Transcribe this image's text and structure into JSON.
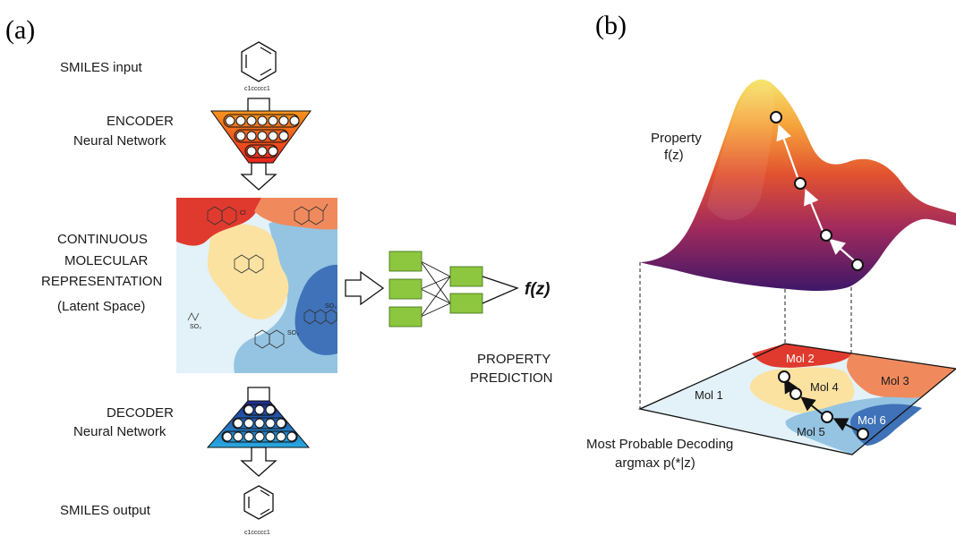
{
  "panel_a": {
    "label": "(a)",
    "smiles_input_label": "SMILES input",
    "smiles_input_text": "c1ccccc1",
    "encoder_line1": "ENCODER",
    "encoder_line2": "Neural Network",
    "continuous_line1": "CONTINUOUS",
    "continuous_line2": "MOLECULAR",
    "continuous_line3": "REPRESENTATION",
    "latent_space": "(Latent Space)",
    "decoder_line1": "DECODER",
    "decoder_line2": "Neural Network",
    "smiles_output_label": "SMILES output",
    "smiles_output_text": "c1ccccc1",
    "fz": "f(z)",
    "property_line1": "PROPERTY",
    "property_line2": "PREDICTION",
    "so3_a": "SO₃",
    "so3_b": "SO₃",
    "so3_c": "SO₃",
    "cl": "Cl"
  },
  "panel_b": {
    "label": "(b)",
    "property_line1": "Property",
    "property_line2": "f(z)",
    "mol1": "Mol 1",
    "mol2": "Mol 2",
    "mol3": "Mol 3",
    "mol4": "Mol 4",
    "mol5": "Mol 5",
    "mol6": "Mol 6",
    "decoding_line1": "Most Probable Decoding",
    "decoding_line2": "argmax p(*|z)"
  },
  "colors": {
    "encoder_top": "#f7941d",
    "encoder_bottom": "#e8241e",
    "decoder_top": "#1e2a8c",
    "decoder_bottom": "#29abe2",
    "nn_green": "#8dc63f",
    "region_red": "#e03a2e",
    "region_orange": "#f08a5d",
    "region_yellow": "#fbe2a1",
    "region_lightblue": "#e3f1f9",
    "region_midblue": "#94c4e2",
    "region_darkblue": "#3f72b8",
    "surface_high": "#f6e26b",
    "surface_mid": "#e8542f",
    "surface_low": "#4a1a6b"
  }
}
